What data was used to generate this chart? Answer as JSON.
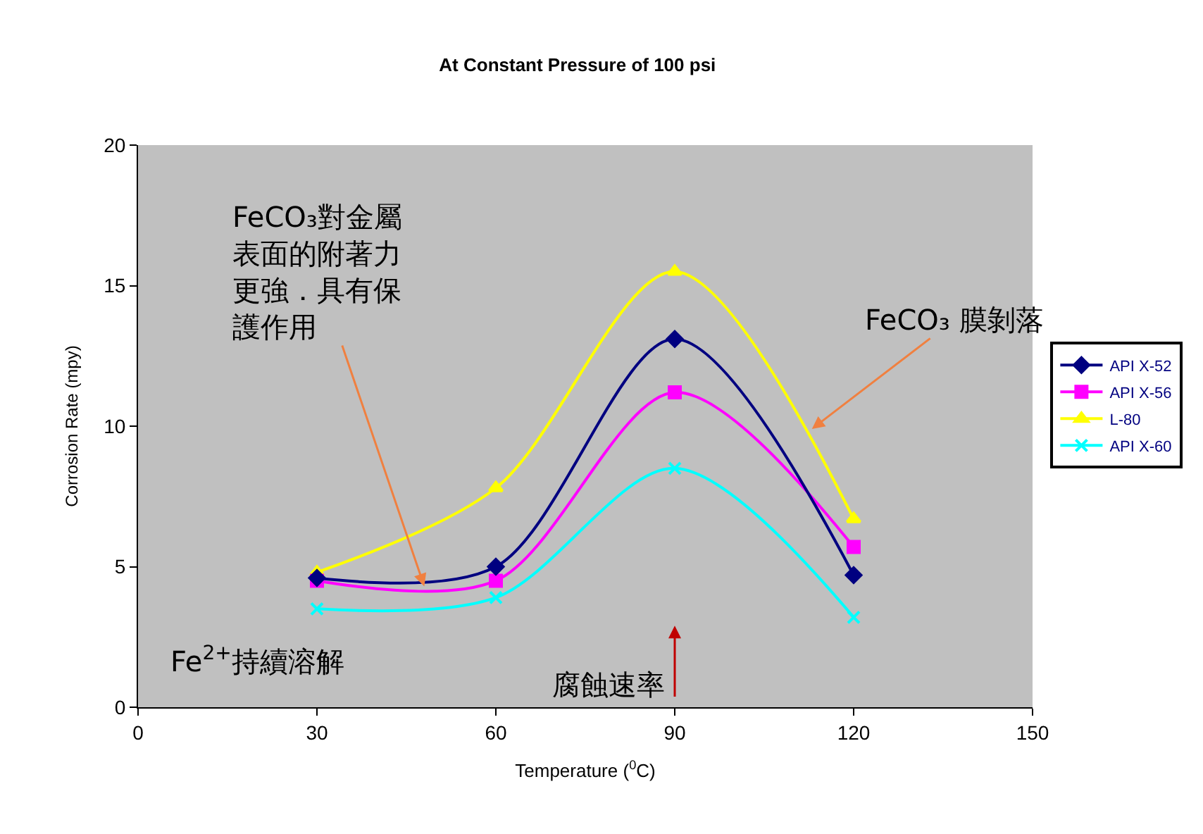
{
  "chart_data": {
    "type": "line",
    "title": "At Constant Pressure of 100 psi",
    "xlabel": "Temperature ($^{0}$C)",
    "ylabel": "Corrosion Rate (mpy)",
    "x": [
      30,
      60,
      90,
      120
    ],
    "series": [
      {
        "name": "API X-52",
        "color": "#000080",
        "marker": "diamond",
        "values": [
          4.6,
          5.0,
          13.1,
          4.7
        ]
      },
      {
        "name": "API X-56",
        "color": "#ff00ff",
        "marker": "square",
        "values": [
          4.5,
          4.5,
          11.2,
          5.7
        ]
      },
      {
        "name": "L-80",
        "color": "#ffff00",
        "marker": "triangle",
        "values": [
          4.8,
          7.8,
          15.5,
          6.7
        ]
      },
      {
        "name": "API X-60",
        "color": "#00ffff",
        "marker": "cross",
        "values": [
          3.5,
          3.9,
          8.5,
          3.2
        ]
      }
    ],
    "xlim": [
      0,
      150
    ],
    "xticks": [
      0,
      30,
      60,
      90,
      120,
      150
    ],
    "ylim": [
      0,
      20
    ],
    "yticks": [
      0,
      5,
      10,
      15,
      20
    ],
    "grid": false,
    "legend": "right",
    "line_style": "solid",
    "annotations": [
      {
        "text": "FeCO₃對金屬表面的附著力更強．具有保護作用",
        "x": 48,
        "y": 4.3
      },
      {
        "text": "FeCO₃ 膜剝落",
        "x": 113,
        "y": 9.9
      },
      "腐蝕速率",
      "Fe$^{2+}$持續溶解"
    ]
  }
}
